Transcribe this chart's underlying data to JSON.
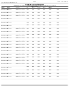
{
  "header_left": "US 2013/0089843 A1",
  "header_center": "189",
  "header_right": "Apr. 11, 2013",
  "table_title": "TABLE 75-continued",
  "subtitle1": "Sequence information for polynucleotides and polypeptides described herein",
  "subtitle2": "and methods of using same",
  "bg_color": "#ffffff",
  "text_color": "#000000",
  "col_header_row1": [
    "",
    "SEQ ID NO:",
    "",
    "",
    "",
    "",
    "",
    "",
    ""
  ],
  "col_header_row2": [
    "Gene /",
    "Genomic",
    "CDS",
    "mRNA",
    "Protein",
    "T-DNA",
    "Binary Vector",
    "",
    ""
  ],
  "rows": [
    [
      "AT5G23120",
      "OsNAC45",
      "description text here",
      "1401",
      "1402",
      "1403",
      "1404",
      "1405",
      "1406"
    ],
    [
      "AT3G16570",
      "OsNAC45",
      "description text here",
      "1407",
      "1408",
      "1409",
      "1410",
      "1411",
      "1412"
    ],
    [
      "AT5G23120",
      "OsNAC45",
      "description text here",
      "1413",
      "1414",
      "1415",
      "1416",
      "1417",
      "1418"
    ],
    [
      "AT3G16570",
      "OsNAC45",
      "",
      "1419",
      "1420",
      "1421",
      "1422",
      "1423",
      "1424"
    ],
    [
      "AT5G23120",
      "OsNAC45",
      "",
      "1425",
      "1426",
      "1427",
      "1428",
      "1429",
      "1430"
    ],
    [
      "AT3G16570",
      "OsNAC45",
      "",
      "1431",
      "1432",
      "1433",
      "1434",
      "1435",
      "1436"
    ],
    [
      "AT5G23120",
      "OsNAC45",
      "description text here",
      "1437",
      "1438",
      "1439",
      "1440",
      "1441",
      "1442"
    ],
    [
      "AT3G16570",
      "OsNAC45",
      "description text here",
      "1443",
      "1444",
      "1445",
      "1446",
      "1447",
      "1448"
    ],
    [
      "AT5G23120",
      "OsNAC45",
      "description text here",
      "1449",
      "1450",
      "1451",
      "1452",
      "1453",
      "1454"
    ],
    [
      "AT3G16570",
      "OsNAC45",
      "description text here",
      "1455",
      "1456",
      "1457",
      "1458",
      "1459",
      "1460"
    ],
    [
      "AT5G23120",
      "OsNAC45",
      "description text here",
      "1461",
      "1462",
      "1463",
      "1464",
      "1465",
      "1466"
    ],
    [
      "AT3G16570",
      "OsNAC45",
      "description text here",
      "1467",
      "1468",
      "1469",
      "1470",
      "1471",
      "1472"
    ],
    [
      "AT5G23120",
      "OsNAC45",
      "description text here",
      "1473",
      "1474",
      "1475",
      "1476",
      "1477",
      "1478"
    ],
    [
      "AT3G16570",
      "OsNAC45",
      "description text here",
      "1479",
      "1480",
      "1481",
      "1482",
      "1483",
      "1484"
    ],
    [
      "AT5G23120",
      "OsNAC45",
      "description text here",
      "1485",
      "1486",
      "1487",
      "1488",
      "1489",
      "1490"
    ],
    [
      "AT3G16570",
      "OsNAC45",
      "description text here",
      "1491",
      "1492",
      "1493",
      "1494",
      "1495",
      "1496"
    ],
    [
      "AT5G23120",
      "OsNAC45",
      "description text here",
      "1497",
      "1498",
      "1499",
      "1500",
      "1501",
      "1502"
    ],
    [
      "AT3G16570",
      "OsNAC45",
      "description text here",
      "1503",
      "1504",
      "1505",
      "1506",
      "1507",
      "1508"
    ],
    [
      "AT5G23120",
      "OsNAC45",
      "",
      "1509",
      "1510",
      "1511",
      "1512",
      "1513",
      "1514"
    ],
    [
      "AT3G16570",
      "",
      "",
      "1515",
      "1516",
      "1517",
      "1518",
      "1519",
      "1520"
    ],
    [
      "AT5G23120",
      "OsNAC45",
      "description text here",
      "1521",
      "1522",
      "1523",
      "1524",
      "1525",
      "1526"
    ],
    [
      "AT3G16570",
      "OsNAC45",
      "description text here",
      "1527",
      "1528",
      "1529",
      "1530",
      "1531",
      "1532"
    ]
  ]
}
